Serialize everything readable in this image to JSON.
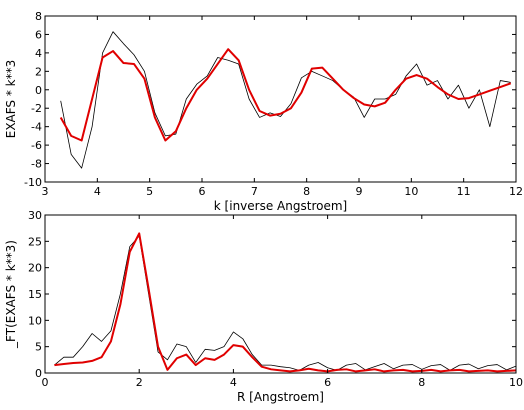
{
  "chart_data": [
    {
      "type": "line",
      "xlabel": "k [inverse Angstroem]",
      "ylabel": "EXAFS * k**3",
      "x": [
        3.3,
        3.5,
        3.7,
        3.9,
        4.1,
        4.3,
        4.5,
        4.7,
        4.9,
        5.1,
        5.3,
        5.5,
        5.7,
        5.9,
        6.1,
        6.3,
        6.5,
        6.7,
        6.9,
        7.1,
        7.3,
        7.5,
        7.7,
        7.9,
        8.1,
        8.3,
        8.5,
        8.7,
        8.9,
        9.1,
        9.3,
        9.5,
        9.7,
        9.9,
        10.1,
        10.3,
        10.5,
        10.7,
        10.9,
        11.1,
        11.3,
        11.5,
        11.7,
        11.9
      ],
      "series": [
        {
          "color": "#000000",
          "width": 0.8,
          "values": [
            -1.2,
            -7,
            -8.5,
            -4,
            4,
            6.3,
            5,
            3.8,
            2,
            -2.5,
            -5,
            -4.8,
            -1,
            0.6,
            1.5,
            3.5,
            3.2,
            2.8,
            -1,
            -3,
            -2.5,
            -2.9,
            -1.5,
            1.3,
            2,
            1.5,
            1,
            0,
            -0.8,
            -3,
            -1,
            -1,
            -0.5,
            1.5,
            2.8,
            0.5,
            1,
            -1,
            0.5,
            -2,
            0,
            -4,
            1,
            0.8
          ]
        },
        {
          "color": "#e00000",
          "width": 2,
          "values": [
            -3,
            -5,
            -5.5,
            -1,
            3.5,
            4.2,
            2.9,
            2.8,
            1.2,
            -3,
            -5.5,
            -4.5,
            -2,
            0,
            1.2,
            2.8,
            4.4,
            3.2,
            0,
            -2.3,
            -2.8,
            -2.6,
            -2,
            -0.3,
            2.3,
            2.4,
            1.2,
            0,
            -0.9,
            -1.6,
            -1.8,
            -1.4,
            0,
            1.2,
            1.6,
            1.2,
            0.3,
            -0.5,
            -1.0,
            -0.9,
            -0.5,
            -0.1,
            0.3,
            0.7
          ]
        }
      ],
      "xlim": [
        3,
        12
      ],
      "xticks": [
        3,
        4,
        5,
        6,
        7,
        8,
        9,
        10,
        11,
        12
      ],
      "ylim": [
        -10,
        8
      ],
      "yticks": [
        -10,
        -8,
        -6,
        -4,
        -2,
        0,
        2,
        4,
        6,
        8
      ]
    },
    {
      "type": "line",
      "xlabel": "R [Angstroem]",
      "ylabel": "_FT(EXAFS * k**3)",
      "x": [
        0.2,
        0.4,
        0.6,
        0.8,
        1.0,
        1.2,
        1.4,
        1.6,
        1.8,
        2.0,
        2.2,
        2.4,
        2.6,
        2.8,
        3.0,
        3.2,
        3.4,
        3.6,
        3.8,
        4.0,
        4.2,
        4.4,
        4.6,
        4.8,
        5.0,
        5.2,
        5.4,
        5.6,
        5.8,
        6.0,
        6.2,
        6.4,
        6.6,
        6.8,
        7.0,
        7.2,
        7.4,
        7.6,
        7.8,
        8.0,
        8.2,
        8.4,
        8.6,
        8.8,
        9.0,
        9.2,
        9.4,
        9.6,
        9.8,
        10.0
      ],
      "series": [
        {
          "color": "#000000",
          "width": 0.8,
          "values": [
            1.5,
            3,
            3,
            5,
            7.5,
            6,
            8,
            15,
            24,
            26,
            15,
            4,
            2.5,
            5.5,
            5,
            2,
            4.5,
            4.3,
            5,
            7.8,
            6.5,
            3.5,
            1.5,
            1.5,
            1.2,
            1,
            0.5,
            1.5,
            2,
            1,
            0.5,
            1.5,
            1.8,
            0.6,
            1.2,
            1.8,
            0.8,
            1.5,
            1.6,
            0.7,
            1.4,
            1.6,
            0.5,
            1.5,
            1.7,
            0.8,
            1.4,
            1.6,
            0.6,
            1.3
          ]
        },
        {
          "color": "#e00000",
          "width": 2,
          "values": [
            1.5,
            1.7,
            1.9,
            2.0,
            2.3,
            3,
            6,
            13,
            23,
            26.5,
            16,
            5,
            0.6,
            2.8,
            3.5,
            1.5,
            2.8,
            2.5,
            3.5,
            5.3,
            5,
            3,
            1.2,
            0.7,
            0.5,
            0.3,
            0.5,
            0.8,
            0.5,
            0.3,
            0.6,
            0.7,
            0.3,
            0.5,
            0.7,
            0.3,
            0.5,
            0.6,
            0.3,
            0.4,
            0.6,
            0.3,
            0.5,
            0.6,
            0.3,
            0.4,
            0.5,
            0.3,
            0.4,
            0.5
          ]
        }
      ],
      "xlim": [
        0,
        10
      ],
      "xticks": [
        0,
        2,
        4,
        6,
        8,
        10
      ],
      "ylim": [
        0,
        30
      ],
      "yticks": [
        0,
        5,
        10,
        15,
        20,
        25,
        30
      ]
    }
  ]
}
